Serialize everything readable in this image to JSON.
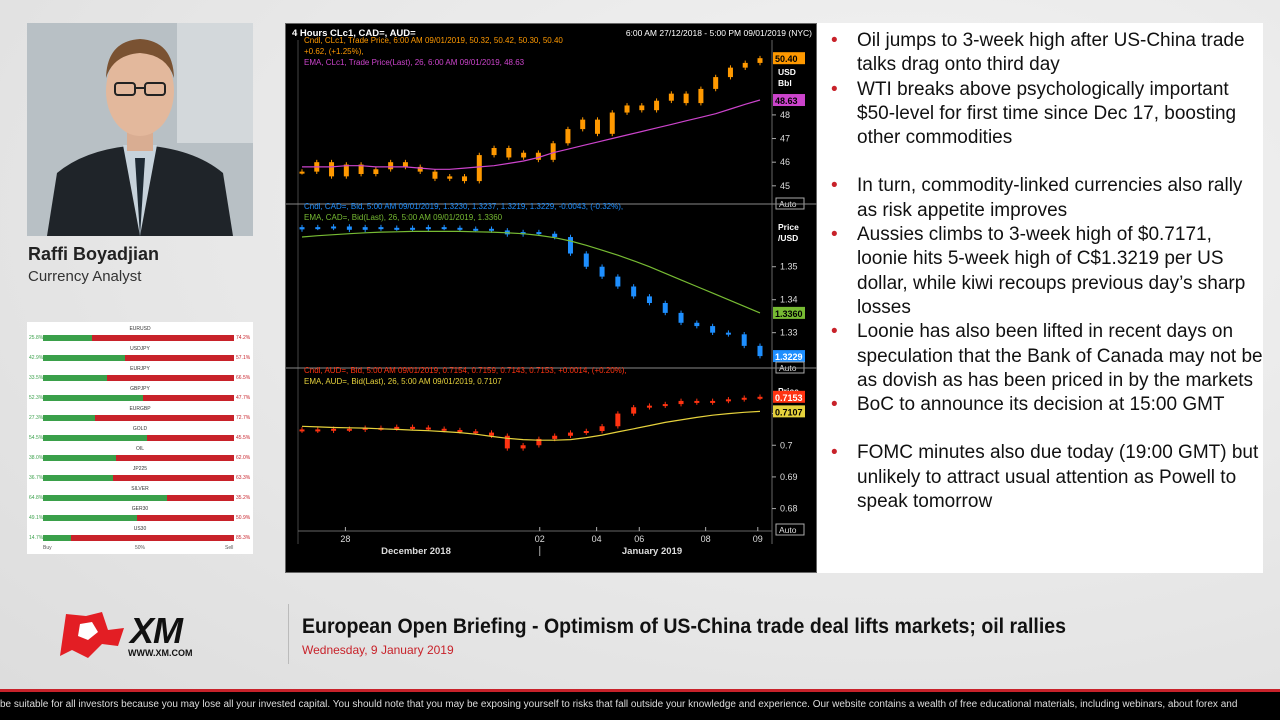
{
  "presenter": {
    "name": "Raffi Boyadjian",
    "role": "Currency Analyst"
  },
  "sentiment": {
    "rows": [
      {
        "name": "EURUSD",
        "buy": 25.8,
        "buy_label": "25.8%",
        "sell_label": "74.2%"
      },
      {
        "name": "USDJPY",
        "buy": 42.9,
        "buy_label": "42.9%",
        "sell_label": "57.1%"
      },
      {
        "name": "EURJPY",
        "buy": 33.5,
        "buy_label": "33.5%",
        "sell_label": "66.5%"
      },
      {
        "name": "GBPJPY",
        "buy": 52.3,
        "buy_label": "52.3%",
        "sell_label": "47.7%"
      },
      {
        "name": "EURGBP",
        "buy": 27.3,
        "buy_label": "27.3%",
        "sell_label": "72.7%"
      },
      {
        "name": "GOLD",
        "buy": 54.5,
        "buy_label": "54.5%",
        "sell_label": "45.5%"
      },
      {
        "name": "OIL",
        "buy": 38.0,
        "buy_label": "38.0%",
        "sell_label": "62.0%"
      },
      {
        "name": "JP225",
        "buy": 36.7,
        "buy_label": "36.7%",
        "sell_label": "63.3%"
      },
      {
        "name": "SILVER",
        "buy": 64.8,
        "buy_label": "64.8%",
        "sell_label": "35.2%"
      },
      {
        "name": "GER30",
        "buy": 49.1,
        "buy_label": "49.1%",
        "sell_label": "50.9%"
      },
      {
        "name": "US30",
        "buy": 14.7,
        "buy_label": "14.7%",
        "sell_label": "85.3%"
      }
    ],
    "axis": {
      "buy": "Buy",
      "mid": "50%",
      "sell": "Sell"
    }
  },
  "chart_data": {
    "type": "candlestick",
    "title": "4 Hours CLc1, CAD=, AUD=",
    "time_range": "6:00 AM 27/12/2018 - 5:00 PM 09/01/2019 (NYC)",
    "x_ticks": [
      "28",
      "02",
      "04",
      "06",
      "08",
      "09"
    ],
    "x_tick_pos": [
      0.1,
      0.51,
      0.63,
      0.72,
      0.86,
      0.97
    ],
    "x_month_labels": [
      "December 2018",
      "January 2019"
    ],
    "panes": [
      {
        "id": "oil",
        "legend": [
          "Cndl, CLc1, Trade Price, 6:00 AM 09/01/2019, 50.32, 50.42, 50.30, 50.40",
          "+0.62, (+1.25%),",
          "EMA, CLc1, Trade Price(Last), 26, 6:00 AM 09/01/2019, 48.63"
        ],
        "axis_title": [
          "Price",
          "USD",
          "Bbl"
        ],
        "ticks": [
          45,
          46,
          47,
          48
        ],
        "ylim": [
          44.4,
          51.0
        ],
        "last_label": "50.40",
        "ema_label": "48.63",
        "candle_color": "#ff9900",
        "ema_color": "#cc44cc",
        "ema": [
          45.8,
          45.8,
          45.8,
          45.85,
          45.85,
          45.8,
          45.8,
          45.8,
          45.75,
          45.7,
          45.7,
          45.75,
          45.8,
          45.85,
          45.95,
          46.05,
          46.2,
          46.4,
          46.55,
          46.7,
          46.85,
          47.0,
          47.15,
          47.3,
          47.45,
          47.6,
          47.75,
          47.9,
          48.05,
          48.25,
          48.45,
          48.63
        ],
        "close": [
          45.6,
          46.0,
          45.4,
          45.9,
          45.5,
          45.7,
          46.0,
          45.8,
          45.6,
          45.3,
          45.4,
          45.2,
          46.3,
          46.6,
          46.2,
          46.4,
          46.1,
          46.8,
          47.4,
          47.8,
          47.2,
          48.1,
          48.4,
          48.2,
          48.6,
          48.9,
          48.5,
          49.1,
          49.6,
          50.0,
          50.2,
          50.4
        ]
      },
      {
        "id": "cad",
        "legend": [
          "Cndl, CAD=, Bid, 5:00 AM 09/01/2019, 1.3230, 1.3237, 1.3219, 1.3229, -0.0043, (-0.32%),",
          "EMA, CAD=, Bid(Last), 26, 5:00 AM 09/01/2019, 1.3360"
        ],
        "axis_title": [
          "Price",
          "/USD"
        ],
        "ticks": [
          "1.35",
          "1.34",
          "1.33"
        ],
        "tick_values": [
          1.35,
          1.34,
          1.33
        ],
        "ylim": [
          1.3205,
          1.3672
        ],
        "last_label": "1.3229",
        "ema_label": "1.3360",
        "candle_color": "#1e8fff",
        "ema_color": "#77bb33",
        "ema": [
          1.359,
          1.3594,
          1.3597,
          1.36,
          1.3603,
          1.3605,
          1.3606,
          1.3607,
          1.3607,
          1.3607,
          1.3607,
          1.3606,
          1.3605,
          1.3603,
          1.36,
          1.3595,
          1.3588,
          1.3578,
          1.3565,
          1.355,
          1.3535,
          1.3518,
          1.35,
          1.348,
          1.346,
          1.344,
          1.342,
          1.34,
          1.338,
          1.336
        ],
        "close": [
          1.362,
          1.3618,
          1.3622,
          1.3612,
          1.362,
          1.3616,
          1.3618,
          1.3614,
          1.362,
          1.3618,
          1.3614,
          1.3615,
          1.361,
          1.3598,
          1.3605,
          1.36,
          1.359,
          1.354,
          1.35,
          1.347,
          1.344,
          1.341,
          1.339,
          1.336,
          1.333,
          1.332,
          1.33,
          1.3295,
          1.326,
          1.3229
        ]
      },
      {
        "id": "aud",
        "legend": [
          "Cndl, AUD=, Bid, 5:00 AM 09/01/2019, 0.7154, 0.7159, 0.7143, 0.7153, +0.0014, (+0.20%),",
          "EMA, AUD=, Bid(Last), 26, 5:00 AM 09/01/2019, 0.7107"
        ],
        "axis_title": [
          "Price"
        ],
        "ticks": [
          "0.71",
          "0.7",
          "0.69",
          "0.68"
        ],
        "tick_values": [
          0.71,
          0.7,
          0.69,
          0.68
        ],
        "ylim": [
          0.6745,
          0.7225
        ],
        "last_label": "0.7153",
        "ema_label": "0.7107",
        "candle_color": "#ff3311",
        "ema_color": "#e6d23c",
        "ema": [
          0.706,
          0.7058,
          0.7056,
          0.7055,
          0.7054,
          0.7052,
          0.705,
          0.7048,
          0.7046,
          0.7043,
          0.704,
          0.7035,
          0.7028,
          0.7022,
          0.7018,
          0.7016,
          0.7016,
          0.7018,
          0.7024,
          0.7032,
          0.7042,
          0.7052,
          0.7062,
          0.7072,
          0.708,
          0.7088,
          0.7095,
          0.71,
          0.7104,
          0.7107
        ],
        "close": [
          0.705,
          0.7046,
          0.7052,
          0.7049,
          0.7055,
          0.7053,
          0.7058,
          0.7056,
          0.7052,
          0.7048,
          0.7044,
          0.704,
          0.703,
          0.699,
          0.7,
          0.702,
          0.703,
          0.704,
          0.7045,
          0.706,
          0.71,
          0.712,
          0.7125,
          0.713,
          0.714,
          0.7135,
          0.714,
          0.7145,
          0.715,
          0.7153
        ]
      }
    ],
    "auto_label": "Auto"
  },
  "bullets": [
    "Oil jumps to 3-week high after US-China trade talks drag onto third day",
    "WTI breaks above psychologically important $50-level for first time since Dec 17, boosting other commodities",
    "In turn, commodity-linked currencies also rally as risk appetite improves",
    "Aussies climbs to 3-week high of $0.7171, loonie hits 5-week high of C$1.3219 per US dollar, while kiwi recoups previous day’s sharp losses",
    "Loonie has also been lifted in recent days on speculation that the Bank of Canada may not be as dovish as has been priced in by the markets",
    "BoC to announce its decision at 15:00 GMT",
    "FOMC minutes also due today (19:00 GMT) but unlikely to attract usual attention as Powell to speak tomorrow"
  ],
  "footer": {
    "logo_text": "XM",
    "logo_url": "WWW.XM.COM",
    "headline": "European Open Briefing - Optimism of US-China trade deal lifts markets; oil rallies",
    "date": "Wednesday, 9 January 2019",
    "ticker": "be suitable for all investors because you may lose all your invested capital. You should note that you may be exposing yourself to risks that fall outside your knowledge and experience. Our website contains a wealth of free educational materials, including webinars, about forex and"
  },
  "colors": {
    "brand_red": "#c8222a",
    "buy_green": "#3aa04a"
  }
}
